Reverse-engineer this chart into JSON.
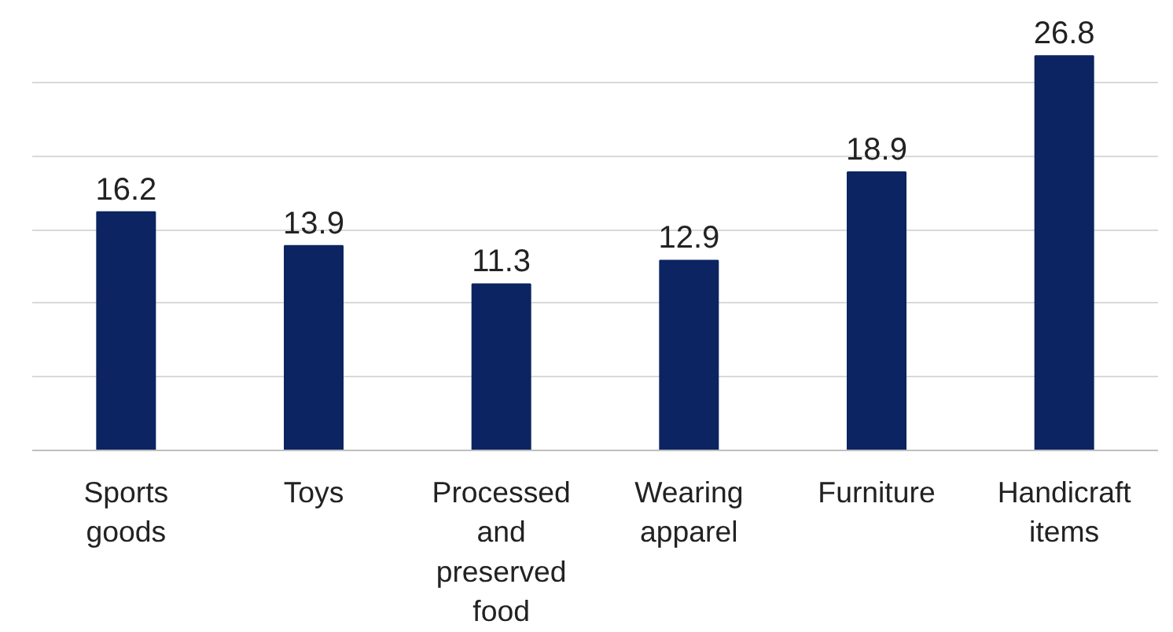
{
  "chart_data": {
    "type": "bar",
    "categories": [
      "Sports goods",
      "Toys",
      "Processed and preserved food",
      "Wearing apparel",
      "Furniture",
      "Handicraft items"
    ],
    "values": [
      16.2,
      13.9,
      11.3,
      12.9,
      18.9,
      26.8
    ],
    "color": "#0c2461",
    "tick_labels": "x",
    "grid": "y",
    "data_labels": true
  }
}
